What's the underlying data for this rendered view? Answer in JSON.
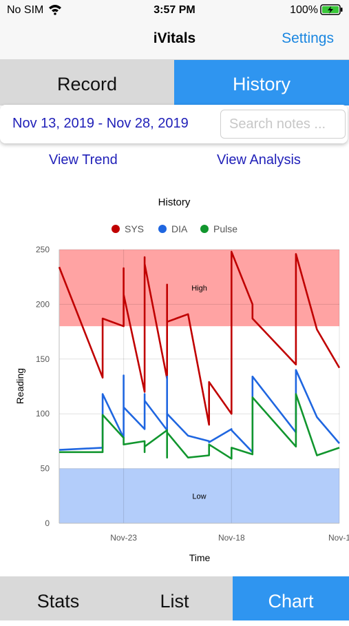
{
  "status_bar": {
    "carrier": "No SIM",
    "time": "3:57 PM",
    "battery": "100%"
  },
  "nav": {
    "title": "iVitals",
    "settings_label": "Settings"
  },
  "segments": {
    "record": "Record",
    "history": "History",
    "selected": "History"
  },
  "filter": {
    "date_range": "Nov 13, 2019 - Nov 28, 2019",
    "search_placeholder": "Search notes ...",
    "search_value": ""
  },
  "links": {
    "trend": "View Trend",
    "analysis": "View Analysis"
  },
  "tabs": {
    "stats": "Stats",
    "list": "List",
    "chart": "Chart",
    "selected": "Chart"
  },
  "colors": {
    "accent": "#2f95f0",
    "link": "#1f1fb8",
    "sys": "#c00000",
    "dia": "#1f66e0",
    "pulse": "#11962e",
    "high_band": "#ffa3a3",
    "low_band": "#b3cdfa"
  },
  "chart_data": {
    "type": "line",
    "title": "History",
    "xlabel": "Time",
    "ylabel": "Reading",
    "ylim": [
      0,
      250
    ],
    "yticks": [
      0,
      50,
      100,
      150,
      200,
      250
    ],
    "xticks": [
      {
        "label": "Nov-23",
        "x": 0.23
      },
      {
        "label": "Nov-18",
        "x": 0.615
      },
      {
        "label": "Nov-1",
        "x": 1.0
      }
    ],
    "bands": [
      {
        "label": "High",
        "from": 180,
        "to": 250,
        "color": "#ffa3a3"
      },
      {
        "label": "Low",
        "from": 0,
        "to": 50,
        "color": "#b3cdfa"
      }
    ],
    "legend_position": "top-center",
    "grid": true,
    "series": [
      {
        "name": "SYS",
        "color": "#c00000",
        "points": [
          [
            0.0,
            234
          ],
          [
            0.155,
            133
          ],
          [
            0.155,
            187
          ],
          [
            0.23,
            180
          ],
          [
            0.23,
            233
          ],
          [
            0.23,
            209
          ],
          [
            0.305,
            120
          ],
          [
            0.305,
            243
          ],
          [
            0.305,
            237
          ],
          [
            0.385,
            132
          ],
          [
            0.385,
            218
          ],
          [
            0.385,
            184
          ],
          [
            0.46,
            191
          ],
          [
            0.535,
            90
          ],
          [
            0.535,
            129
          ],
          [
            0.615,
            100
          ],
          [
            0.615,
            248
          ],
          [
            0.69,
            200
          ],
          [
            0.69,
            187
          ],
          [
            0.845,
            145
          ],
          [
            0.845,
            246
          ],
          [
            0.92,
            177
          ],
          [
            1.0,
            142
          ]
        ]
      },
      {
        "name": "DIA",
        "color": "#1f66e0",
        "points": [
          [
            0.0,
            67
          ],
          [
            0.155,
            69
          ],
          [
            0.155,
            118
          ],
          [
            0.23,
            78
          ],
          [
            0.23,
            135
          ],
          [
            0.23,
            106
          ],
          [
            0.305,
            86
          ],
          [
            0.305,
            118
          ],
          [
            0.305,
            112
          ],
          [
            0.385,
            85
          ],
          [
            0.385,
            134
          ],
          [
            0.385,
            100
          ],
          [
            0.46,
            80
          ],
          [
            0.535,
            75
          ],
          [
            0.535,
            74
          ],
          [
            0.615,
            86
          ],
          [
            0.615,
            85
          ],
          [
            0.69,
            65
          ],
          [
            0.69,
            134
          ],
          [
            0.845,
            83
          ],
          [
            0.845,
            140
          ],
          [
            0.92,
            97
          ],
          [
            1.0,
            73
          ]
        ]
      },
      {
        "name": "Pulse",
        "color": "#11962e",
        "points": [
          [
            0.0,
            65
          ],
          [
            0.155,
            65
          ],
          [
            0.155,
            99
          ],
          [
            0.23,
            78
          ],
          [
            0.23,
            72
          ],
          [
            0.305,
            75
          ],
          [
            0.305,
            65
          ],
          [
            0.305,
            70
          ],
          [
            0.385,
            85
          ],
          [
            0.385,
            60
          ],
          [
            0.385,
            83
          ],
          [
            0.46,
            60
          ],
          [
            0.535,
            62
          ],
          [
            0.535,
            72
          ],
          [
            0.615,
            59
          ],
          [
            0.615,
            69
          ],
          [
            0.69,
            63
          ],
          [
            0.69,
            115
          ],
          [
            0.845,
            70
          ],
          [
            0.845,
            118
          ],
          [
            0.92,
            62
          ],
          [
            1.0,
            69
          ]
        ]
      }
    ]
  }
}
